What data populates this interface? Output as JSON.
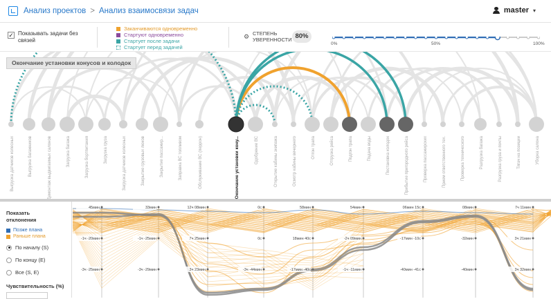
{
  "breadcrumb": {
    "root": "Анализ проектов",
    "sep": ">",
    "current": "Анализ взаимосвязи задач"
  },
  "user": {
    "name": "master",
    "caret": "▾"
  },
  "controls": {
    "show_unlinked": "Показывать задачи без связей",
    "checked_mark": "✓",
    "legend": [
      {
        "label": "Заканчиваются одновременно",
        "color": "#f0a22e"
      },
      {
        "label": "Стартуют одновременно",
        "color": "#8b4a9c"
      },
      {
        "label": "Стартует после задачи",
        "color": "#3aa5a5"
      },
      {
        "label": "Стартует перед задачей",
        "color": "#3aa5a5"
      }
    ],
    "confidence_label": "СТЕПЕНЬ УВЕРЕННОСТИ",
    "confidence_value": "80%",
    "confidence_fraction": 0.8,
    "slider_ticks": [
      "0%",
      "50%",
      "100%"
    ]
  },
  "selected_task": "Окончание установки конусов и колодок",
  "tasks": [
    "Выгрузка датчиков колесных",
    "Выгрузка багажников",
    "Демонтаж выдвигаемых салонов",
    "Загрузка багажа",
    "Загрузка бортпитания",
    "Загрузка груза",
    "Загрузка датчиков колесных",
    "Закрытие грузовых люков",
    "Закрытие пассажир...",
    "Заправка ВС топливом",
    "Обслуживание ВС (перрон)",
    "Окончание установки кону...",
    "Одобрение ВС",
    "Открытие кабины экипажа",
    "Осмотр кабины вечернего",
    "Отгон трапа",
    "Отгрузка рейса",
    "Подгон трапа",
    "Подача воды",
    "Постановка колодок",
    "Прибытие пригородного рейса",
    "Проверка пассажирских",
    "Прием ответственного тех.",
    "Проверка технического",
    "Разгрузка багажа",
    "Разгрузка груза и почты",
    "Тягач на позиции",
    "Уборка салона"
  ],
  "bottom": {
    "title": "Показать отклонения",
    "legend_late": "Позже плана",
    "legend_early": "Раньше плана",
    "late_color": "#2f6db5",
    "early_color": "#f0a22e",
    "options": [
      "По началу (S)",
      "По концу (E)",
      "Все (S, E)"
    ],
    "selected_option": 0,
    "sensitivity": "Чувствительность (%)",
    "col_labels_top": [
      "45мин",
      "33мин",
      "12ч 08мин",
      "0с",
      "58мин",
      "54мин",
      "06мин 15с",
      "08мин",
      "7ч 11мин"
    ],
    "col_labels_mid": [
      "-1ч -20мин",
      "-1ч -25мин",
      "7ч 25мин",
      "0с",
      "18мин 40с",
      "-2ч 09мин",
      "-17мин -10с",
      "-32мин",
      "3ч 21мин"
    ],
    "col_labels_low": [
      "-3ч -25мин",
      "-3ч -29мин",
      "3ч 23мин",
      "-3ч -44мин",
      "-17мин -40с",
      "-1ч -11мин",
      "-40мин -41с",
      "-40мин",
      "3ч 32мин"
    ]
  }
}
